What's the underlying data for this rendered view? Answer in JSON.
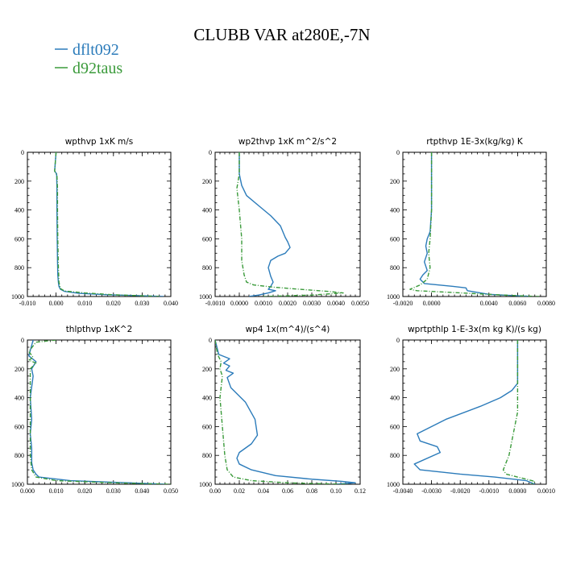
{
  "figure": {
    "title": "CLUBB VAR at280E,-7N",
    "legend": [
      {
        "label": "dflt092",
        "color": "#2b7bba",
        "style": "solid"
      },
      {
        "label": "d92taus",
        "color": "#3a9a3a",
        "style": "dashed"
      }
    ]
  },
  "chart_data": [
    {
      "type": "line",
      "title": "wpthvp   1xK m/s",
      "xlim": [
        -0.01,
        0.04
      ],
      "xticks": [
        "-0.010",
        "0.000",
        "0.010",
        "0.020",
        "0.030",
        "0.040"
      ],
      "xtick_values": [
        -0.01,
        0.0,
        0.01,
        0.02,
        0.03,
        0.04
      ],
      "ylim": [
        1000,
        0
      ],
      "yticks": [
        "0",
        "200",
        "400",
        "600",
        "800",
        "1000"
      ],
      "series": [
        {
          "name": "dflt092",
          "x": [
            0.0,
            -0.0005,
            0.0002,
            0.0003,
            0.0003,
            0.0004,
            0.0005,
            0.0006,
            0.0008,
            0.001,
            0.0015,
            0.003,
            0.008,
            0.018,
            0.03,
            0.0375
          ],
          "y": [
            0,
            130,
            150,
            250,
            400,
            600,
            750,
            850,
            900,
            930,
            950,
            965,
            978,
            988,
            995,
            1000
          ]
        },
        {
          "name": "d92taus",
          "x": [
            0.0,
            -0.0005,
            0.0003,
            0.0005,
            0.0005,
            0.0006,
            0.0008,
            0.001,
            0.0015,
            0.003,
            0.01,
            0.02,
            0.03,
            0.036
          ],
          "y": [
            0,
            130,
            160,
            250,
            400,
            600,
            800,
            900,
            945,
            962,
            975,
            988,
            995,
            1000
          ]
        }
      ]
    },
    {
      "type": "line",
      "title": "wp2thvp   1xK m^2/s^2",
      "xlim": [
        -0.001,
        0.005
      ],
      "xticks": [
        "-0.0010",
        "0.0000",
        "0.0010",
        "0.0020",
        "0.0030",
        "0.0040",
        "0.0050"
      ],
      "xtick_values": [
        -0.001,
        0.0,
        0.001,
        0.002,
        0.003,
        0.004,
        0.005
      ],
      "ylim": [
        1000,
        0
      ],
      "yticks": [
        "0",
        "200",
        "400",
        "600",
        "800",
        "1000"
      ],
      "series": [
        {
          "name": "dflt092",
          "x": [
            0.0,
            0.0,
            0.0001,
            0.0003,
            0.0008,
            0.0013,
            0.0017,
            0.0019,
            0.002,
            0.0021,
            0.0019,
            0.0016,
            0.0013,
            0.0012,
            0.0013,
            0.0014,
            0.0013,
            0.0012,
            0.0015,
            0.0012,
            0.0008,
            0.0004
          ],
          "y": [
            0,
            150,
            230,
            300,
            370,
            440,
            510,
            590,
            620,
            660,
            700,
            720,
            750,
            800,
            860,
            900,
            930,
            950,
            960,
            975,
            990,
            1000
          ]
        },
        {
          "name": "d92taus",
          "x": [
            0.0,
            0.0,
            -0.0001,
            0.0,
            0.0001,
            0.0001,
            0.0002,
            0.0003,
            0.0006,
            0.0014,
            0.0025,
            0.0037,
            0.0043,
            0.003,
            0.001
          ],
          "y": [
            0,
            150,
            250,
            400,
            600,
            750,
            850,
            900,
            920,
            935,
            950,
            965,
            975,
            990,
            1000
          ]
        }
      ]
    },
    {
      "type": "line",
      "title": "rtpthvp   1E-3x(kg/kg) K",
      "xlim": [
        -0.002,
        0.008
      ],
      "xticks": [
        "-0.0020",
        "0.0000",
        "0.0040",
        "0.0060",
        "0.0080"
      ],
      "xtick_values": [
        -0.002,
        0.0,
        0.004,
        0.006,
        0.008
      ],
      "ylim": [
        1000,
        0
      ],
      "yticks": [
        "0",
        "200",
        "400",
        "600",
        "800",
        "1000"
      ],
      "series": [
        {
          "name": "dflt092",
          "x": [
            0.0,
            0.0,
            -0.0001,
            -0.0003,
            -0.0004,
            -0.0003,
            -0.0005,
            -0.0003,
            -0.0006,
            -0.0008,
            -0.0005,
            0.0015,
            0.0024,
            0.0025,
            0.004,
            0.007
          ],
          "y": [
            0,
            400,
            550,
            600,
            650,
            700,
            760,
            820,
            850,
            880,
            910,
            930,
            940,
            960,
            985,
            1000
          ]
        },
        {
          "name": "d92taus",
          "x": [
            0.0,
            0.0,
            -0.0001,
            -0.0002,
            -0.0001,
            -0.0003,
            -0.0008,
            -0.0015,
            -0.001,
            0.002,
            0.005,
            0.0075
          ],
          "y": [
            0,
            400,
            600,
            700,
            800,
            880,
            920,
            950,
            960,
            975,
            990,
            1000
          ]
        }
      ]
    },
    {
      "type": "line",
      "title": "thlpthvp   1xK^2",
      "xlim": [
        0.0,
        0.05
      ],
      "xticks": [
        "0.000",
        "0.010",
        "0.020",
        "0.030",
        "0.040",
        "0.050"
      ],
      "xtick_values": [
        0.0,
        0.01,
        0.02,
        0.03,
        0.04,
        0.05
      ],
      "ylim": [
        1000,
        0
      ],
      "yticks": [
        "0",
        "200",
        "400",
        "600",
        "800",
        "1000"
      ],
      "series": [
        {
          "name": "dflt092",
          "x": [
            0.002,
            0.0005,
            0.003,
            0.0015,
            0.002,
            0.001,
            0.0015,
            0.001,
            0.0015,
            0.0015,
            0.002,
            0.003,
            0.004,
            0.015,
            0.035,
            0.048
          ],
          "y": [
            0,
            110,
            150,
            200,
            250,
            400,
            550,
            650,
            750,
            850,
            900,
            930,
            950,
            975,
            990,
            1000
          ]
        },
        {
          "name": "d92taus",
          "x": [
            0.01,
            0.003,
            0.0005,
            0.002,
            0.0005,
            0.003,
            0.001,
            0.001,
            0.001,
            0.001,
            0.0015,
            0.003,
            0.01,
            0.03,
            0.05
          ],
          "y": [
            0,
            15,
            80,
            120,
            140,
            160,
            200,
            400,
            600,
            800,
            900,
            950,
            975,
            990,
            1000
          ]
        }
      ]
    },
    {
      "type": "line",
      "title": "wp4   1x(m^4)/(s^4)",
      "xlim": [
        0.0,
        0.12
      ],
      "xticks": [
        "0.00",
        "0.02",
        "0.04",
        "0.06",
        "0.08",
        "0.10",
        "0.12"
      ],
      "xtick_values": [
        0.0,
        0.02,
        0.04,
        0.06,
        0.08,
        0.1,
        0.12
      ],
      "ylim": [
        1000,
        0
      ],
      "yticks": [
        "0",
        "200",
        "400",
        "600",
        "800",
        "1000"
      ],
      "series": [
        {
          "name": "dflt092",
          "x": [
            0.0,
            0.003,
            0.012,
            0.007,
            0.012,
            0.009,
            0.015,
            0.01,
            0.013,
            0.025,
            0.033,
            0.035,
            0.03,
            0.02,
            0.018,
            0.02,
            0.03,
            0.05,
            0.08,
            0.105,
            0.116,
            0.1
          ],
          "y": [
            0,
            100,
            130,
            160,
            180,
            210,
            230,
            260,
            330,
            430,
            550,
            660,
            720,
            780,
            820,
            860,
            900,
            940,
            965,
            980,
            990,
            1000
          ]
        },
        {
          "name": "d92taus",
          "x": [
            0.0,
            0.002,
            0.005,
            0.004,
            0.006,
            0.004,
            0.006,
            0.008,
            0.01,
            0.015,
            0.03,
            0.06,
            0.09,
            0.11
          ],
          "y": [
            0,
            100,
            150,
            200,
            250,
            400,
            600,
            800,
            900,
            950,
            975,
            990,
            997,
            1000
          ]
        }
      ]
    },
    {
      "type": "line",
      "title": "wprtpthlp   1-E-3x(m kg K)/(s kg)",
      "xlim": [
        -0.004,
        0.001
      ],
      "xticks": [
        "-0.0040",
        "-0.0030",
        "-0.0020",
        "-0.0010",
        "0.0000",
        "0.0010"
      ],
      "xtick_values": [
        -0.004,
        -0.003,
        -0.002,
        -0.001,
        0.0,
        0.001
      ],
      "ylim": [
        1000,
        0
      ],
      "yticks": [
        "0",
        "200",
        "400",
        "600",
        "800",
        "1000"
      ],
      "series": [
        {
          "name": "dflt092",
          "x": [
            0.0,
            0.0,
            -0.0002,
            -0.0006,
            -0.0013,
            -0.0025,
            -0.0035,
            -0.0034,
            -0.0028,
            -0.0027,
            -0.0036,
            -0.0034,
            -0.002,
            -0.0008,
            0.0003,
            0.0006
          ],
          "y": [
            0,
            300,
            350,
            400,
            460,
            550,
            650,
            700,
            740,
            780,
            860,
            900,
            930,
            950,
            975,
            1000
          ]
        },
        {
          "name": "d92taus",
          "x": [
            0.0,
            0.0,
            0.0,
            -0.0002,
            -0.0003,
            -0.0005,
            -0.0004,
            0.0002,
            0.0006,
            0.0005
          ],
          "y": [
            0,
            300,
            500,
            700,
            800,
            900,
            930,
            960,
            980,
            1000
          ]
        }
      ]
    }
  ]
}
